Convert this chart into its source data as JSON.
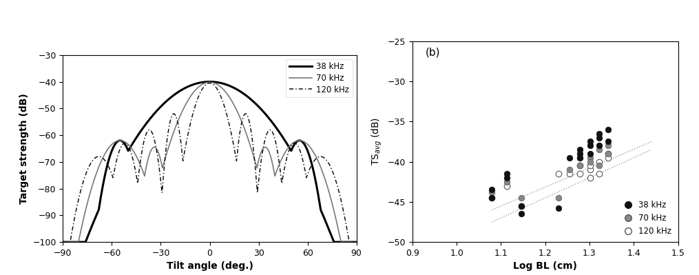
{
  "left_plot": {
    "xlabel": "Tilt angle (deg.)",
    "ylabel": "Target strength (dB)",
    "xlim": [
      -90,
      90
    ],
    "ylim": [
      -100,
      -30
    ],
    "yticks": [
      -100,
      -90,
      -80,
      -70,
      -60,
      -50,
      -40,
      -30
    ],
    "xticks": [
      -90,
      -60,
      -30,
      0,
      30,
      60,
      90
    ],
    "legend": [
      "38 kHz",
      "70 kHz",
      "120 kHz"
    ]
  },
  "right_plot": {
    "label": "(b)",
    "xlabel": "Log BL (cm)",
    "ylabel": "TS$_{avg}$ (dB)",
    "xlim": [
      0.9,
      1.5
    ],
    "ylim": [
      -50,
      -25
    ],
    "yticks": [
      -50,
      -45,
      -40,
      -35,
      -30,
      -25
    ],
    "xticks": [
      0.9,
      1.0,
      1.1,
      1.2,
      1.3,
      1.4,
      1.5
    ],
    "scatter_38_x": [
      1.079,
      1.079,
      1.114,
      1.114,
      1.146,
      1.146,
      1.23,
      1.255,
      1.279,
      1.279,
      1.279,
      1.301,
      1.301,
      1.301,
      1.322,
      1.322,
      1.322,
      1.342,
      1.342
    ],
    "scatter_38_y": [
      -43.5,
      -44.5,
      -42.0,
      -41.5,
      -46.5,
      -45.5,
      -45.8,
      -39.5,
      -39.0,
      -39.5,
      -38.5,
      -38.0,
      -37.5,
      -39.0,
      -37.0,
      -36.5,
      -38.0,
      -36.0,
      -37.5
    ],
    "scatter_70_x": [
      1.079,
      1.114,
      1.146,
      1.23,
      1.255,
      1.279,
      1.279,
      1.301,
      1.301,
      1.322,
      1.322,
      1.342,
      1.342
    ],
    "scatter_70_y": [
      -43.8,
      -42.5,
      -44.5,
      -44.5,
      -41.0,
      -39.5,
      -40.5,
      -39.5,
      -40.0,
      -38.5,
      -40.5,
      -38.0,
      -39.0
    ],
    "scatter_120_x": [
      1.079,
      1.114,
      1.146,
      1.23,
      1.255,
      1.279,
      1.279,
      1.301,
      1.301,
      1.301,
      1.322,
      1.322,
      1.342,
      1.342
    ],
    "scatter_120_y": [
      -44.5,
      -43.0,
      -45.5,
      -41.5,
      -41.5,
      -40.5,
      -41.5,
      -41.0,
      -42.0,
      -40.5,
      -40.0,
      -41.5,
      -39.0,
      -39.5
    ],
    "trendline1_x": [
      1.08,
      1.44
    ],
    "trendline1_y": [
      -46.0,
      -37.5
    ],
    "trendline2_x": [
      1.08,
      1.44
    ],
    "trendline2_y": [
      -47.5,
      -38.5
    ]
  }
}
